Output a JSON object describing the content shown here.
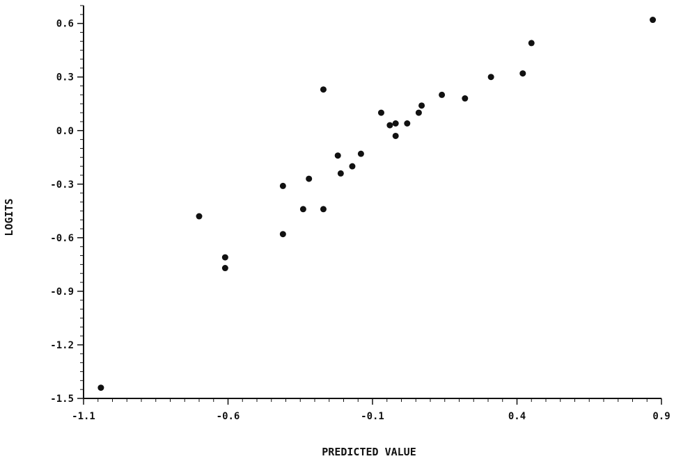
{
  "chart_data": {
    "type": "scatter",
    "title": "",
    "xlabel": "PREDICTED VALUE",
    "ylabel": "LOGITS",
    "xlim": [
      -1.1,
      0.9
    ],
    "ylim": [
      -1.5,
      0.7
    ],
    "x_ticks": [
      -1.1,
      -0.6,
      -0.1,
      0.4,
      0.9
    ],
    "x_tick_labels": [
      "-1.1",
      "-0.6",
      "-0.1",
      "0.4",
      "0.9"
    ],
    "y_ticks": [
      0.6,
      0.3,
      0.0,
      -0.3,
      -0.6,
      -0.9,
      -1.2,
      -1.5
    ],
    "y_tick_labels": [
      "0.6",
      "0.3",
      "0.0",
      "-0.3",
      "-0.6",
      "-0.9",
      "-1.2",
      "-1.5"
    ],
    "grid": false,
    "legend": "none",
    "series": [
      {
        "points": [
          {
            "x": -1.04,
            "y": -1.44
          },
          {
            "x": -0.7,
            "y": -0.48
          },
          {
            "x": -0.61,
            "y": -0.71
          },
          {
            "x": -0.61,
            "y": -0.77
          },
          {
            "x": -0.41,
            "y": -0.31
          },
          {
            "x": -0.41,
            "y": -0.58
          },
          {
            "x": -0.32,
            "y": -0.27
          },
          {
            "x": -0.34,
            "y": -0.44
          },
          {
            "x": -0.27,
            "y": 0.23
          },
          {
            "x": -0.27,
            "y": -0.44
          },
          {
            "x": -0.22,
            "y": -0.14
          },
          {
            "x": -0.21,
            "y": -0.24
          },
          {
            "x": -0.17,
            "y": -0.2
          },
          {
            "x": -0.14,
            "y": -0.13
          },
          {
            "x": -0.07,
            "y": 0.1
          },
          {
            "x": -0.04,
            "y": 0.03
          },
          {
            "x": -0.02,
            "y": 0.04
          },
          {
            "x": -0.02,
            "y": -0.03
          },
          {
            "x": 0.02,
            "y": 0.04
          },
          {
            "x": 0.06,
            "y": 0.1
          },
          {
            "x": 0.07,
            "y": 0.14
          },
          {
            "x": 0.14,
            "y": 0.2
          },
          {
            "x": 0.22,
            "y": 0.18
          },
          {
            "x": 0.31,
            "y": 0.3
          },
          {
            "x": 0.42,
            "y": 0.32
          },
          {
            "x": 0.45,
            "y": 0.49
          },
          {
            "x": 0.87,
            "y": 0.62
          }
        ]
      }
    ]
  }
}
